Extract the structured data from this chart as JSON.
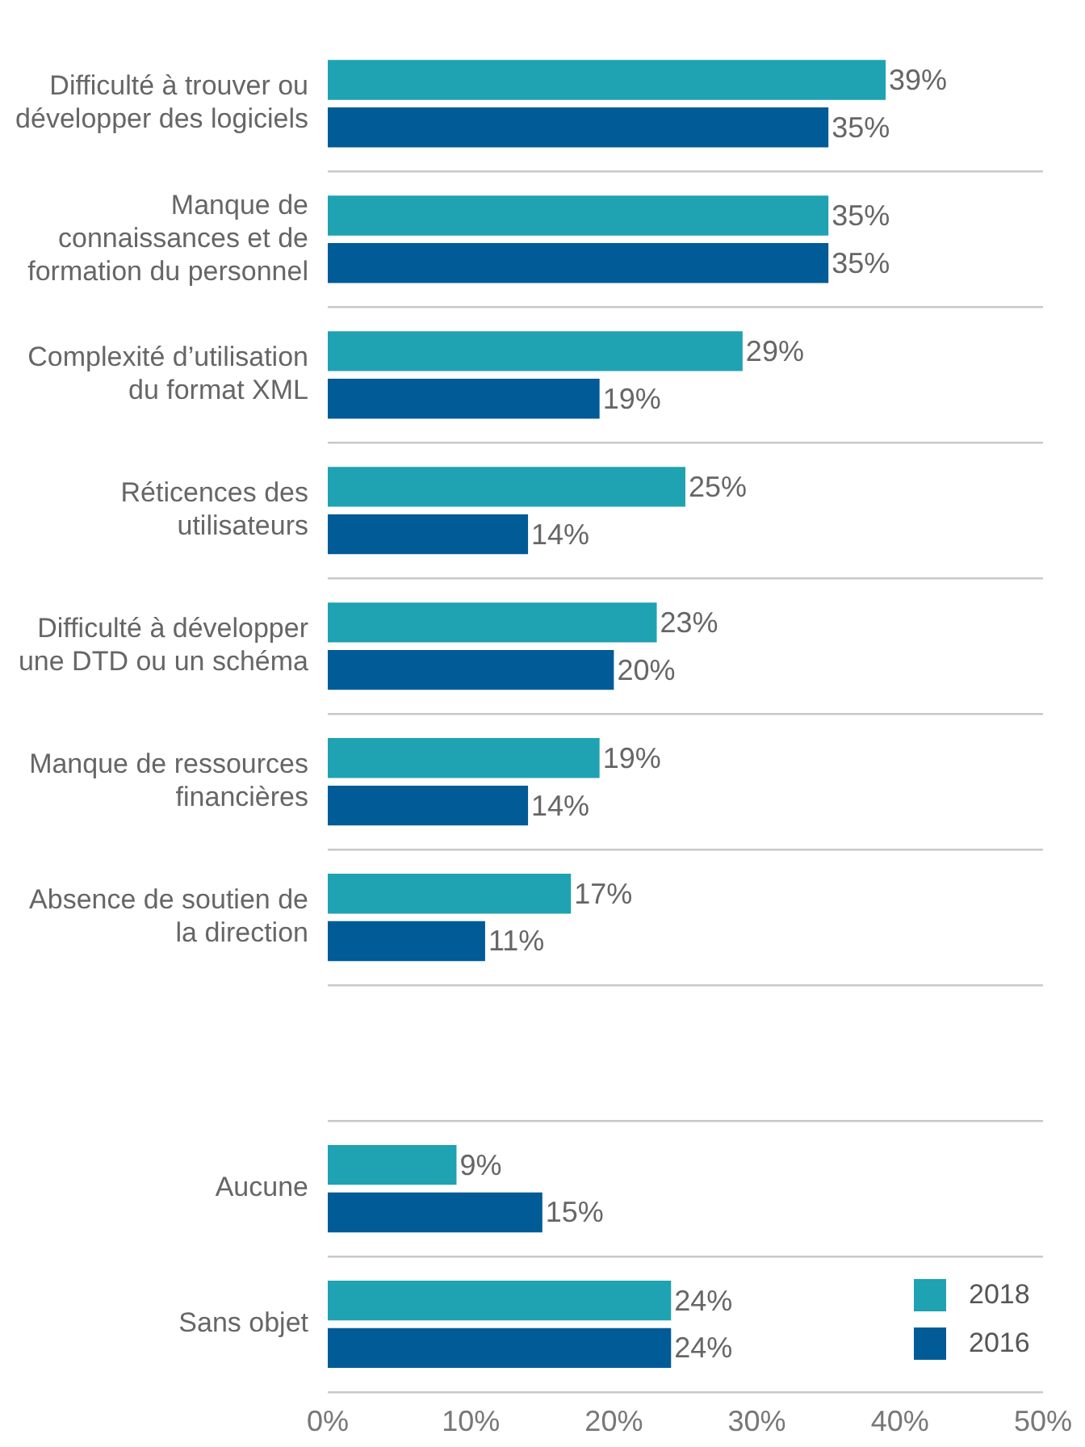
{
  "chart_data": {
    "type": "bar",
    "orientation": "horizontal",
    "categories": [
      "Difficulté à trouver ou développer des logiciels",
      "Manque de connaissances et de formation du personnel",
      "Complexité d’utilisation du format XML",
      "Réticences des utilisateurs",
      "Difficulté à développer une DTD ou un schéma",
      "Manque de ressources financières",
      "Absence de soutien de la direction",
      null,
      "Aucune",
      "Sans objet"
    ],
    "series": [
      {
        "name": "2018",
        "color": "#1fa2b1",
        "values": [
          39,
          35,
          29,
          25,
          23,
          19,
          17,
          null,
          9,
          24
        ],
        "value_labels": [
          "39%",
          "35%",
          "29%",
          "25%",
          "23%",
          "19%",
          "17%",
          null,
          "9%",
          "24%"
        ]
      },
      {
        "name": "2016",
        "color": "#005b97",
        "values": [
          35,
          35,
          19,
          14,
          20,
          14,
          11,
          null,
          15,
          24
        ],
        "value_labels": [
          "35%",
          "35%",
          "19%",
          "14%",
          "20%",
          "14%",
          "11%",
          null,
          "15%",
          "24%"
        ]
      }
    ],
    "xlim": [
      0,
      50
    ],
    "xticks": [
      {
        "value": 0,
        "label": "0%"
      },
      {
        "value": 10,
        "label": "10%"
      },
      {
        "value": 20,
        "label": "20%"
      },
      {
        "value": 30,
        "label": "30%"
      },
      {
        "value": 40,
        "label": "40%"
      },
      {
        "value": 50,
        "label": "50%"
      }
    ],
    "grid": "y",
    "legend": "bottom right"
  }
}
